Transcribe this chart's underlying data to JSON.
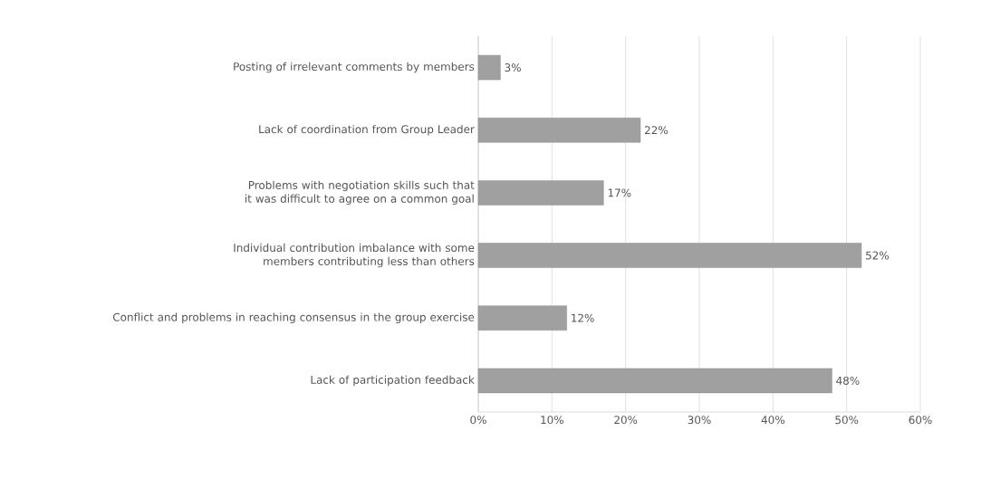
{
  "chart_data": {
    "type": "bar",
    "orientation": "horizontal",
    "categories": [
      "Posting of irrelevant comments by members",
      "Lack of coordination from Group Leader",
      "Problems with negotiation skills such that it was difficult to agree on a common goal",
      "Individual contribution imbalance with some members contributing less than others",
      "Conflict and problems in reaching consensus in the group exercise",
      "Lack of participation feedback"
    ],
    "values": [
      3,
      22,
      17,
      52,
      12,
      48
    ],
    "value_labels": [
      "3%",
      "22%",
      "17%",
      "52%",
      "12%",
      "48%"
    ],
    "color": "#a0a0a0",
    "xlim": [
      0,
      60
    ],
    "xticks": [
      {
        "value": 0,
        "label": "0%"
      },
      {
        "value": 10,
        "label": "10%"
      },
      {
        "value": 20,
        "label": "20%"
      },
      {
        "value": 30,
        "label": "30%"
      },
      {
        "value": 40,
        "label": "40%"
      },
      {
        "value": 50,
        "label": "50%"
      },
      {
        "value": 60,
        "label": "60%"
      }
    ],
    "grid": "x"
  }
}
